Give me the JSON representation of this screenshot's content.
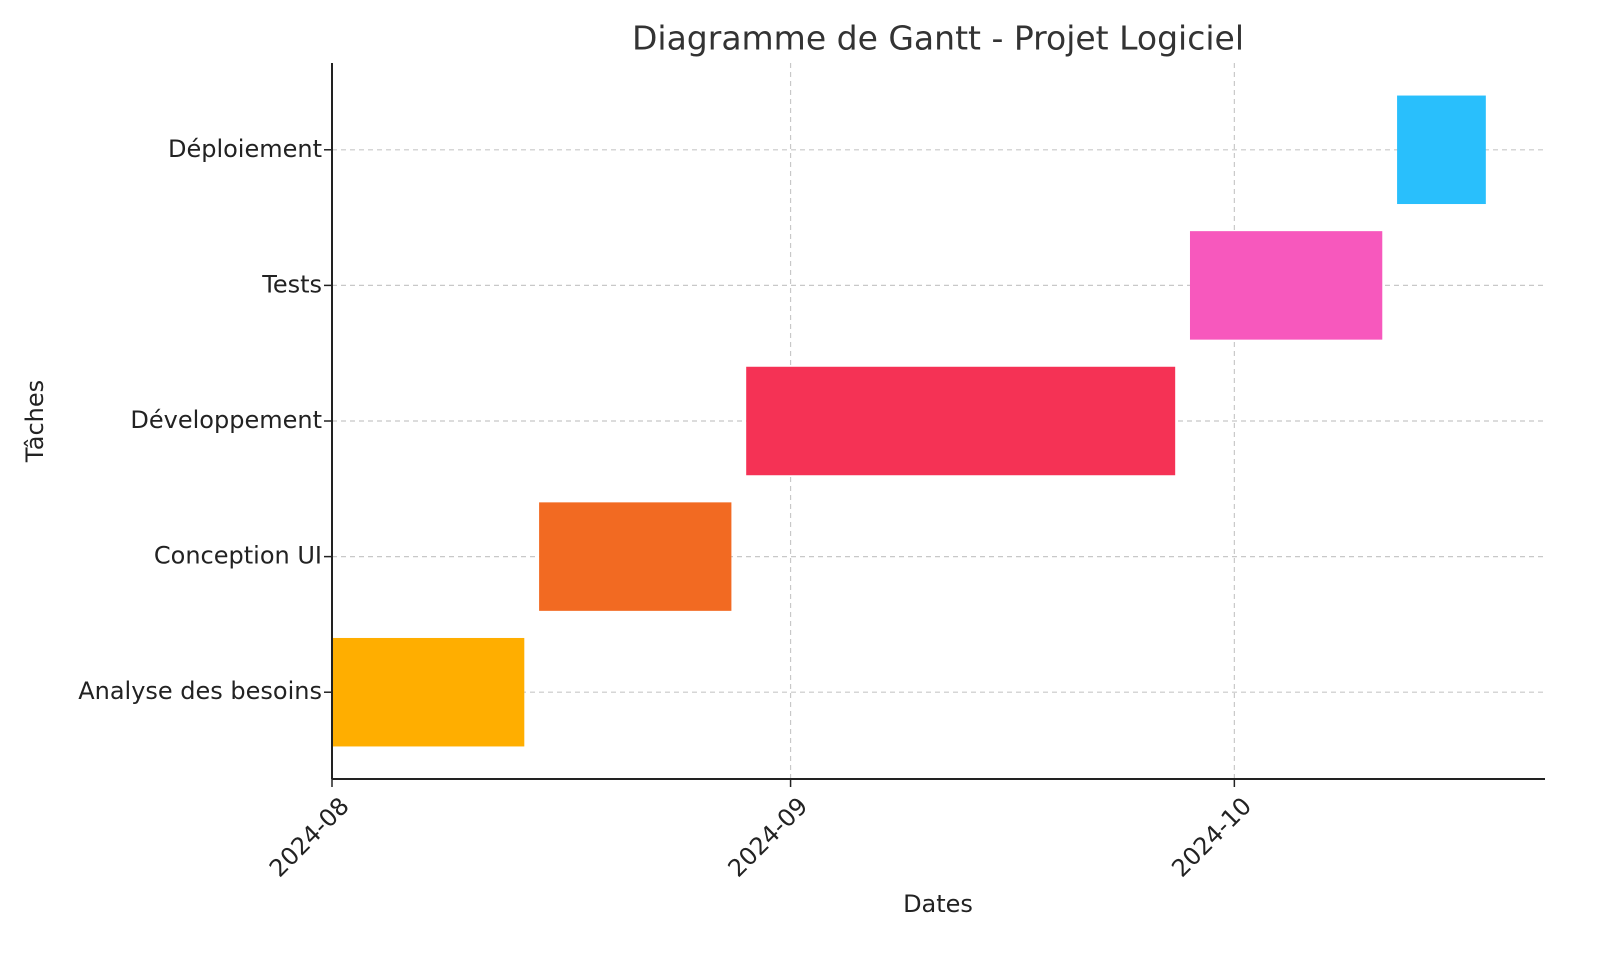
{
  "chart_data": {
    "type": "gantt",
    "title": "Diagramme de Gantt - Projet Logiciel",
    "xlabel": "Dates",
    "ylabel": "Tâches",
    "tasks": [
      {
        "name": "Analyse des besoins",
        "start": "2024-08-01",
        "end": "2024-08-14",
        "color": "#ffae00"
      },
      {
        "name": "Conception UI",
        "start": "2024-08-15",
        "end": "2024-08-28",
        "color": "#f26a22"
      },
      {
        "name": "Développement",
        "start": "2024-08-29",
        "end": "2024-09-27",
        "color": "#f53255"
      },
      {
        "name": "Tests",
        "start": "2024-09-28",
        "end": "2024-10-11",
        "color": "#f758bd"
      },
      {
        "name": "Déploiement",
        "start": "2024-10-12",
        "end": "2024-10-18",
        "color": "#29bffc"
      }
    ],
    "xlim": [
      "2024-08-01",
      "2024-10-22"
    ],
    "xticks": [
      "2024-08",
      "2024-09",
      "2024-10"
    ],
    "grid": true
  }
}
